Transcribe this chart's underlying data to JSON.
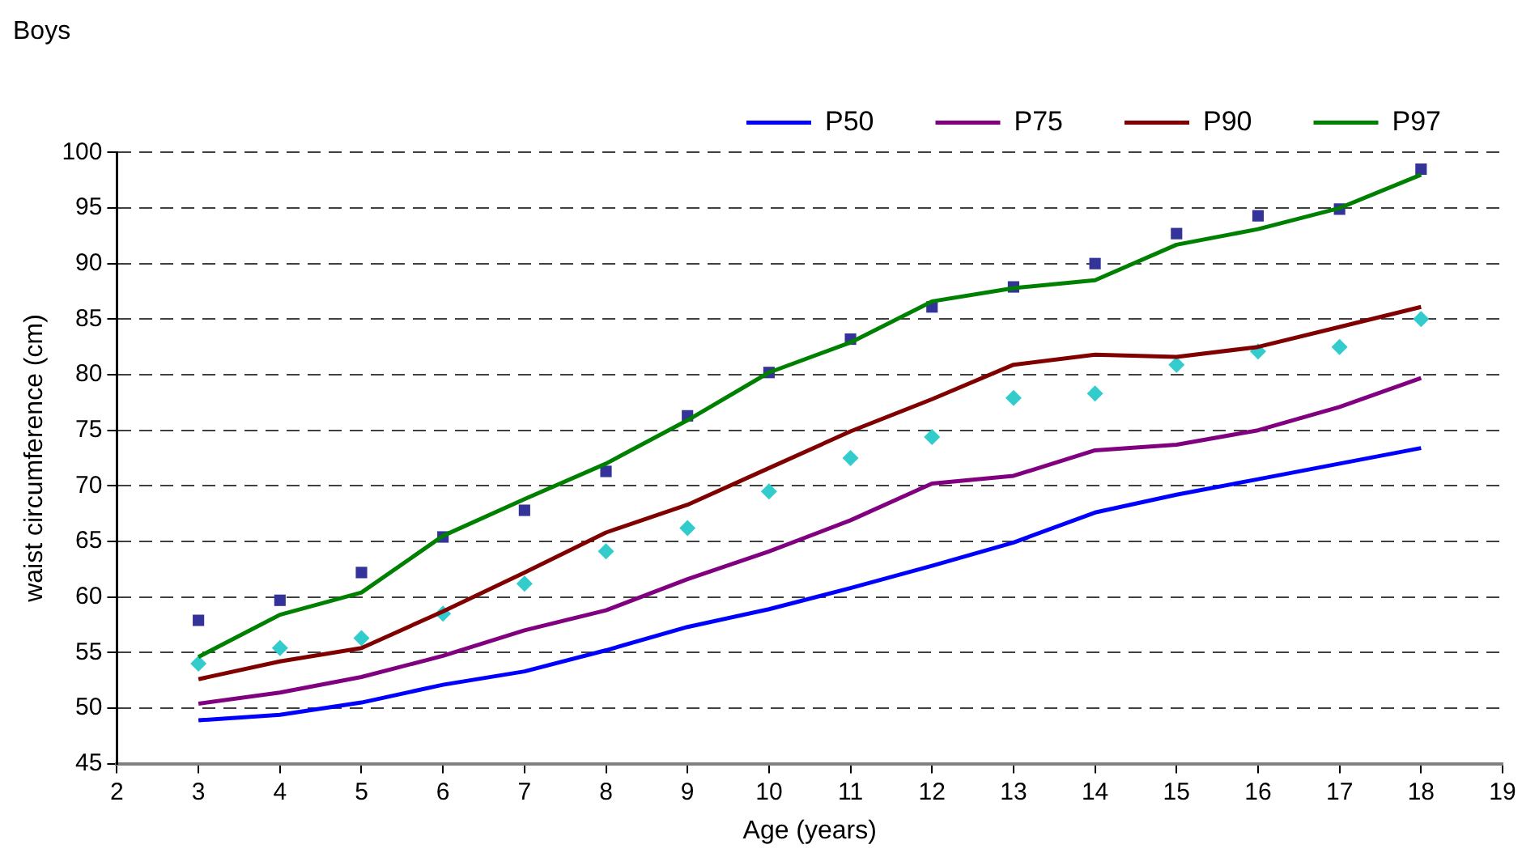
{
  "chart_data": {
    "type": "line",
    "title": "Boys",
    "xlabel": "Age (years)",
    "ylabel": "waist circumference (cm)",
    "x": [
      3,
      4,
      5,
      6,
      7,
      8,
      9,
      10,
      11,
      12,
      13,
      14,
      15,
      16,
      17,
      18
    ],
    "series": [
      {
        "name": "P50",
        "color": "#0000ff",
        "marker": "none",
        "values": [
          48.9,
          49.4,
          50.5,
          52.1,
          53.3,
          55.2,
          57.3,
          58.9,
          60.8,
          62.8,
          64.9,
          67.6,
          69.2,
          70.6,
          72.0,
          73.4
        ]
      },
      {
        "name": "P75",
        "color": "#800080",
        "marker": "none",
        "values": [
          50.4,
          51.4,
          52.8,
          54.7,
          57.0,
          58.8,
          61.6,
          64.1,
          66.9,
          70.2,
          70.9,
          73.2,
          73.7,
          75.0,
          77.1,
          79.7
        ]
      },
      {
        "name": "P90",
        "color": "#800000",
        "marker": "none",
        "values": [
          52.6,
          54.2,
          55.4,
          58.7,
          62.2,
          65.8,
          68.3,
          71.6,
          74.9,
          77.8,
          80.9,
          81.8,
          81.6,
          82.5,
          84.3,
          86.1
        ]
      },
      {
        "name": "P97",
        "color": "#008000",
        "marker": "none",
        "values": [
          54.6,
          58.4,
          60.4,
          65.5,
          68.8,
          72.0,
          75.9,
          80.2,
          82.9,
          86.6,
          87.8,
          88.5,
          91.7,
          93.1,
          95.0,
          98.0
        ]
      },
      {
        "type": "scatter",
        "color": "#333399",
        "marker": "square",
        "values": [
          57.9,
          59.7,
          62.2,
          65.4,
          67.8,
          71.3,
          76.3,
          80.2,
          83.2,
          86.1,
          87.9,
          90.0,
          92.7,
          94.3,
          94.9,
          98.5
        ]
      },
      {
        "type": "scatter",
        "color": "#33cccc",
        "marker": "diamond",
        "values": [
          54.0,
          55.4,
          56.3,
          58.5,
          61.2,
          64.1,
          66.2,
          69.5,
          72.5,
          74.4,
          77.9,
          78.3,
          80.9,
          82.1,
          82.5,
          85.0
        ]
      }
    ],
    "xlim": [
      2,
      19
    ],
    "xticks": [
      2,
      3,
      4,
      5,
      6,
      7,
      8,
      9,
      10,
      11,
      12,
      13,
      14,
      15,
      16,
      17,
      18,
      19
    ],
    "ylim": [
      45,
      100
    ],
    "yticks": [
      45,
      50,
      55,
      60,
      65,
      70,
      75,
      80,
      85,
      90,
      95,
      100
    ],
    "grid": "y",
    "legend": "top right",
    "line_style": "solid"
  }
}
